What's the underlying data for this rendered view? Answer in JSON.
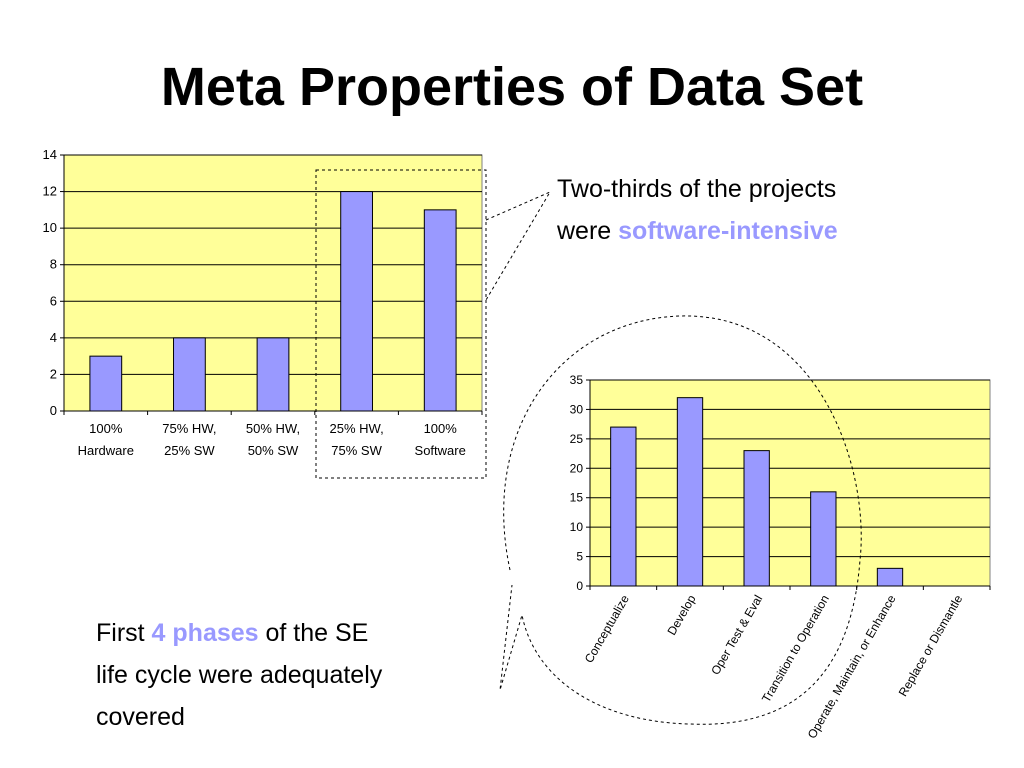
{
  "slide": {
    "title": "Meta Properties of Data Set",
    "note1": {
      "line1": "Two-thirds of the projects",
      "line2_prefix": "were ",
      "line2_highlight": "software-intensive"
    },
    "note2": {
      "prefix": "First ",
      "highlight": "4 phases",
      "suffix": " of the SE",
      "line2": "life cycle were adequately",
      "line3": "covered"
    }
  },
  "colors": {
    "plot_bg": "#ffff99",
    "bar": "#9999ff",
    "highlight": "#9999ff"
  },
  "chart_data": [
    {
      "type": "bar",
      "categories": [
        [
          "100%",
          "Hardware"
        ],
        [
          "75% HW,",
          "25% SW"
        ],
        [
          "50% HW,",
          "50% SW"
        ],
        [
          "25% HW,",
          "75% SW"
        ],
        [
          "100%",
          "Software"
        ]
      ],
      "values": [
        3,
        4,
        4,
        12,
        11
      ],
      "ylim": [
        0,
        14
      ],
      "yticks": [
        0,
        2,
        4,
        6,
        8,
        10,
        12,
        14
      ],
      "grid": true
    },
    {
      "type": "bar",
      "categories": [
        "Conceptualize",
        "Develop",
        "Oper Test & Eval",
        "Transition to Operation",
        "Operate, Maintain, or Enhance",
        "Replace or Dismantle"
      ],
      "values": [
        27,
        32,
        23,
        16,
        3,
        0
      ],
      "ylim": [
        0,
        35
      ],
      "yticks": [
        0,
        5,
        10,
        15,
        20,
        25,
        30,
        35
      ],
      "grid": true
    }
  ]
}
